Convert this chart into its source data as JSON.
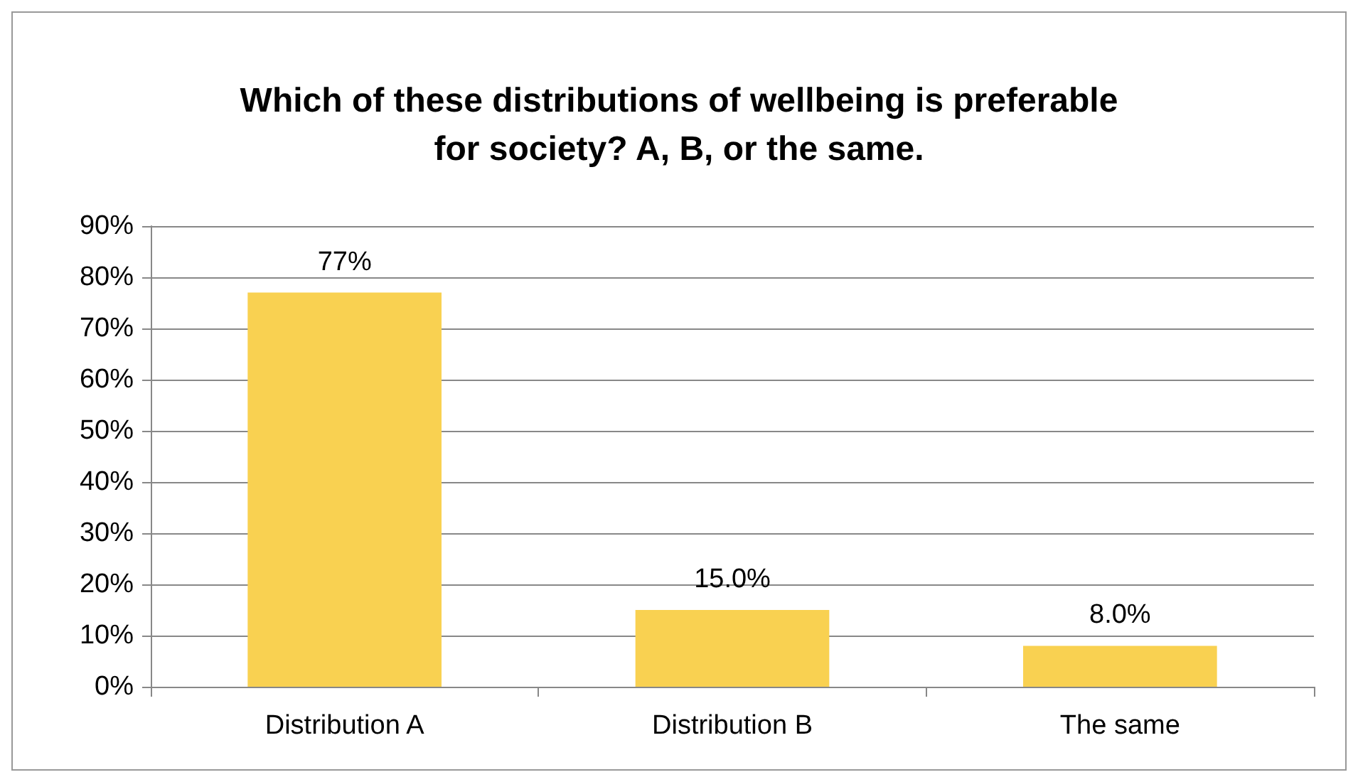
{
  "chart_data": {
    "type": "bar",
    "title": "Which of these distributions of wellbeing is preferable\nfor society? A, B, or the same.",
    "categories": [
      "Distribution A",
      "Distribution B",
      "The same"
    ],
    "values": [
      77,
      15,
      8
    ],
    "value_labels": [
      "77%",
      "15.0%",
      "8.0%"
    ],
    "color": "#f9d151",
    "ylim": [
      0,
      90
    ],
    "yticks": [
      {
        "value": 0,
        "label": "0%"
      },
      {
        "value": 10,
        "label": "10%"
      },
      {
        "value": 20,
        "label": "20%"
      },
      {
        "value": 30,
        "label": "30%"
      },
      {
        "value": 40,
        "label": "40%"
      },
      {
        "value": 50,
        "label": "50%"
      },
      {
        "value": 60,
        "label": "60%"
      },
      {
        "value": 70,
        "label": "70%"
      },
      {
        "value": 80,
        "label": "80%"
      },
      {
        "value": 90,
        "label": "90%"
      }
    ],
    "grid": "y"
  }
}
